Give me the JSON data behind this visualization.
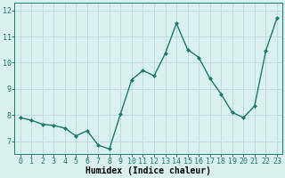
{
  "x": [
    0,
    1,
    2,
    3,
    4,
    5,
    6,
    7,
    8,
    9,
    10,
    11,
    12,
    13,
    14,
    15,
    16,
    17,
    18,
    19,
    20,
    21,
    22,
    23
  ],
  "y": [
    7.9,
    7.8,
    7.65,
    7.6,
    7.5,
    7.2,
    7.4,
    6.85,
    6.7,
    8.05,
    9.35,
    9.7,
    9.5,
    10.35,
    11.5,
    10.5,
    10.2,
    9.4,
    8.8,
    8.1,
    7.9,
    8.35,
    10.45,
    11.7
  ],
  "line_color": "#1a7a6a",
  "marker": "D",
  "marker_size": 2,
  "line_width": 1.0,
  "bg_color": "#d9f0ee",
  "grid_color": "#b8d8d4",
  "xlabel": "Humidex (Indice chaleur)",
  "xlabel_fontsize": 7,
  "tick_fontsize": 6,
  "ylim": [
    6.5,
    12.3
  ],
  "yticks": [
    7,
    8,
    9,
    10,
    11,
    12
  ],
  "xticks": [
    0,
    1,
    2,
    3,
    4,
    5,
    6,
    7,
    8,
    9,
    10,
    11,
    12,
    13,
    14,
    15,
    16,
    17,
    18,
    19,
    20,
    21,
    22,
    23
  ]
}
